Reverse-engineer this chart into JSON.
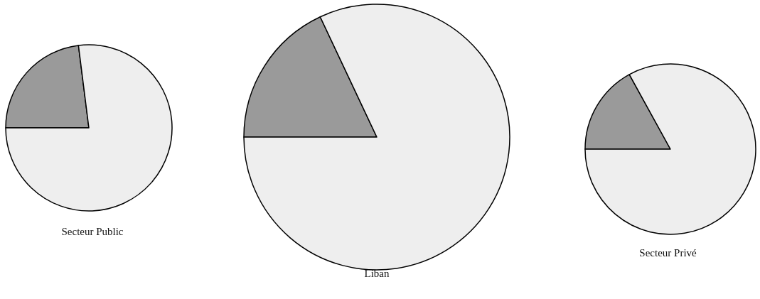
{
  "chart_data": [
    {
      "type": "pie",
      "title": "Secteur Public",
      "categories": [
        null,
        null
      ],
      "values": [
        23,
        77
      ],
      "colors": [
        "#9a9a9a",
        "#eeeeee"
      ]
    },
    {
      "type": "pie",
      "title": "Liban",
      "categories": [
        null,
        null
      ],
      "values": [
        18,
        82
      ],
      "colors": [
        "#9a9a9a",
        "#eeeeee"
      ]
    },
    {
      "type": "pie",
      "title": "Secteur Privé",
      "categories": [
        null,
        null
      ],
      "values": [
        17,
        83
      ],
      "colors": [
        "#9a9a9a",
        "#eeeeee"
      ]
    }
  ]
}
